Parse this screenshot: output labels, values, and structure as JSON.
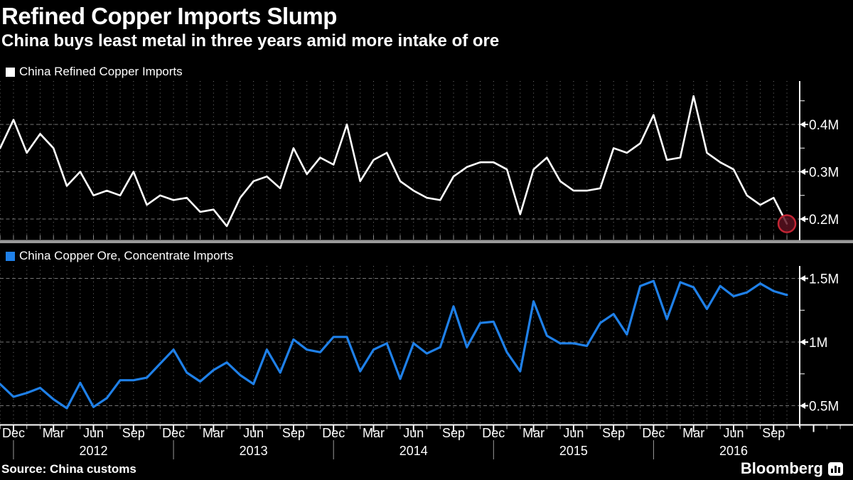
{
  "header": {
    "title": "Refined Copper Imports Slump",
    "subtitle": "China buys least metal in three years amid more intake of ore"
  },
  "footer": {
    "source": "Source: China customs",
    "brand": "Bloomberg"
  },
  "colors": {
    "background": "#000000",
    "refined_line": "#ffffff",
    "ore_line": "#1f80e8",
    "grid": "#767676",
    "axis": "#ffffff",
    "mid_axis_bar": "#9a9a9a",
    "year_divider": "#9a9a9a",
    "highlight_fill": "#5c1120",
    "highlight_ring": "#c22534"
  },
  "x_axis": {
    "quarter_labels": [
      "Dec",
      "Mar",
      "Jun",
      "Sep",
      "Dec",
      "Mar",
      "Jun",
      "Sep",
      "Dec",
      "Mar",
      "Jun",
      "Sep",
      "Dec",
      "Mar",
      "Jun",
      "Sep",
      "Dec",
      "Mar",
      "Jun",
      "Sep"
    ],
    "year_labels": [
      "2012",
      "2013",
      "2014",
      "2015",
      "2016"
    ]
  },
  "chart_data": [
    {
      "type": "line",
      "name": "China Refined Copper Imports",
      "color": "#ffffff",
      "legend_label": "China Refined Copper Imports",
      "ylim": [
        0.15,
        0.47
      ],
      "y_ticks": [
        {
          "v": 0.4,
          "label": "0.4M"
        },
        {
          "v": 0.3,
          "label": "0.3M"
        },
        {
          "v": 0.2,
          "label": "0.2M"
        }
      ],
      "y_minor_ticks": [
        0.45,
        0.35,
        0.25
      ],
      "x_months": [
        "2011-11",
        "2011-12",
        "2012-01",
        "2012-02",
        "2012-03",
        "2012-04",
        "2012-05",
        "2012-06",
        "2012-07",
        "2012-08",
        "2012-09",
        "2012-10",
        "2012-11",
        "2012-12",
        "2013-01",
        "2013-02",
        "2013-03",
        "2013-04",
        "2013-05",
        "2013-06",
        "2013-07",
        "2013-08",
        "2013-09",
        "2013-10",
        "2013-11",
        "2013-12",
        "2014-01",
        "2014-02",
        "2014-03",
        "2014-04",
        "2014-05",
        "2014-06",
        "2014-07",
        "2014-08",
        "2014-09",
        "2014-10",
        "2014-11",
        "2014-12",
        "2015-01",
        "2015-02",
        "2015-03",
        "2015-04",
        "2015-05",
        "2015-06",
        "2015-07",
        "2015-08",
        "2015-09",
        "2015-10",
        "2015-11",
        "2015-12",
        "2016-01",
        "2016-02",
        "2016-03",
        "2016-04",
        "2016-05",
        "2016-06",
        "2016-07",
        "2016-08",
        "2016-09",
        "2016-10"
      ],
      "values": [
        0.35,
        0.41,
        0.34,
        0.38,
        0.35,
        0.27,
        0.3,
        0.25,
        0.26,
        0.25,
        0.3,
        0.23,
        0.25,
        0.24,
        0.245,
        0.215,
        0.22,
        0.185,
        0.245,
        0.28,
        0.29,
        0.265,
        0.35,
        0.295,
        0.33,
        0.315,
        0.4,
        0.28,
        0.325,
        0.34,
        0.28,
        0.26,
        0.245,
        0.24,
        0.29,
        0.31,
        0.32,
        0.32,
        0.305,
        0.21,
        0.305,
        0.33,
        0.28,
        0.26,
        0.26,
        0.265,
        0.35,
        0.34,
        0.36,
        0.42,
        0.325,
        0.33,
        0.46,
        0.34,
        0.32,
        0.305,
        0.25,
        0.23,
        0.245,
        0.19
      ],
      "highlight": {
        "x_month": "2016-10",
        "value": 0.19,
        "marker": "red-circle"
      }
    },
    {
      "type": "line",
      "name": "China Copper Ore, Concentrate Imports",
      "color": "#1f80e8",
      "legend_label": "China Copper Ore, Concentrate Imports",
      "ylim": [
        0.4,
        1.6
      ],
      "y_ticks": [
        {
          "v": 1.5,
          "label": "1.5M"
        },
        {
          "v": 1.0,
          "label": "1M"
        },
        {
          "v": 0.5,
          "label": "0.5M"
        }
      ],
      "y_minor_ticks": [
        1.25,
        0.75
      ],
      "x_months": [
        "2011-11",
        "2011-12",
        "2012-01",
        "2012-02",
        "2012-03",
        "2012-04",
        "2012-05",
        "2012-06",
        "2012-07",
        "2012-08",
        "2012-09",
        "2012-10",
        "2012-11",
        "2012-12",
        "2013-01",
        "2013-02",
        "2013-03",
        "2013-04",
        "2013-05",
        "2013-06",
        "2013-07",
        "2013-08",
        "2013-09",
        "2013-10",
        "2013-11",
        "2013-12",
        "2014-01",
        "2014-02",
        "2014-03",
        "2014-04",
        "2014-05",
        "2014-06",
        "2014-07",
        "2014-08",
        "2014-09",
        "2014-10",
        "2014-11",
        "2014-12",
        "2015-01",
        "2015-02",
        "2015-03",
        "2015-04",
        "2015-05",
        "2015-06",
        "2015-07",
        "2015-08",
        "2015-09",
        "2015-10",
        "2015-11",
        "2015-12",
        "2016-01",
        "2016-02",
        "2016-03",
        "2016-04",
        "2016-05",
        "2016-06",
        "2016-07",
        "2016-08",
        "2016-09",
        "2016-10"
      ],
      "values": [
        0.67,
        0.57,
        0.6,
        0.64,
        0.55,
        0.48,
        0.68,
        0.49,
        0.56,
        0.7,
        0.7,
        0.72,
        0.83,
        0.94,
        0.76,
        0.69,
        0.78,
        0.84,
        0.74,
        0.67,
        0.94,
        0.76,
        1.02,
        0.94,
        0.92,
        1.04,
        1.04,
        0.77,
        0.94,
        0.99,
        0.71,
        0.99,
        0.91,
        0.96,
        1.28,
        0.96,
        1.15,
        1.16,
        0.92,
        0.77,
        1.32,
        1.05,
        0.99,
        0.99,
        0.97,
        1.15,
        1.22,
        1.06,
        1.44,
        1.48,
        1.18,
        1.47,
        1.43,
        1.26,
        1.44,
        1.36,
        1.39,
        1.46,
        1.4,
        1.37
      ]
    }
  ]
}
